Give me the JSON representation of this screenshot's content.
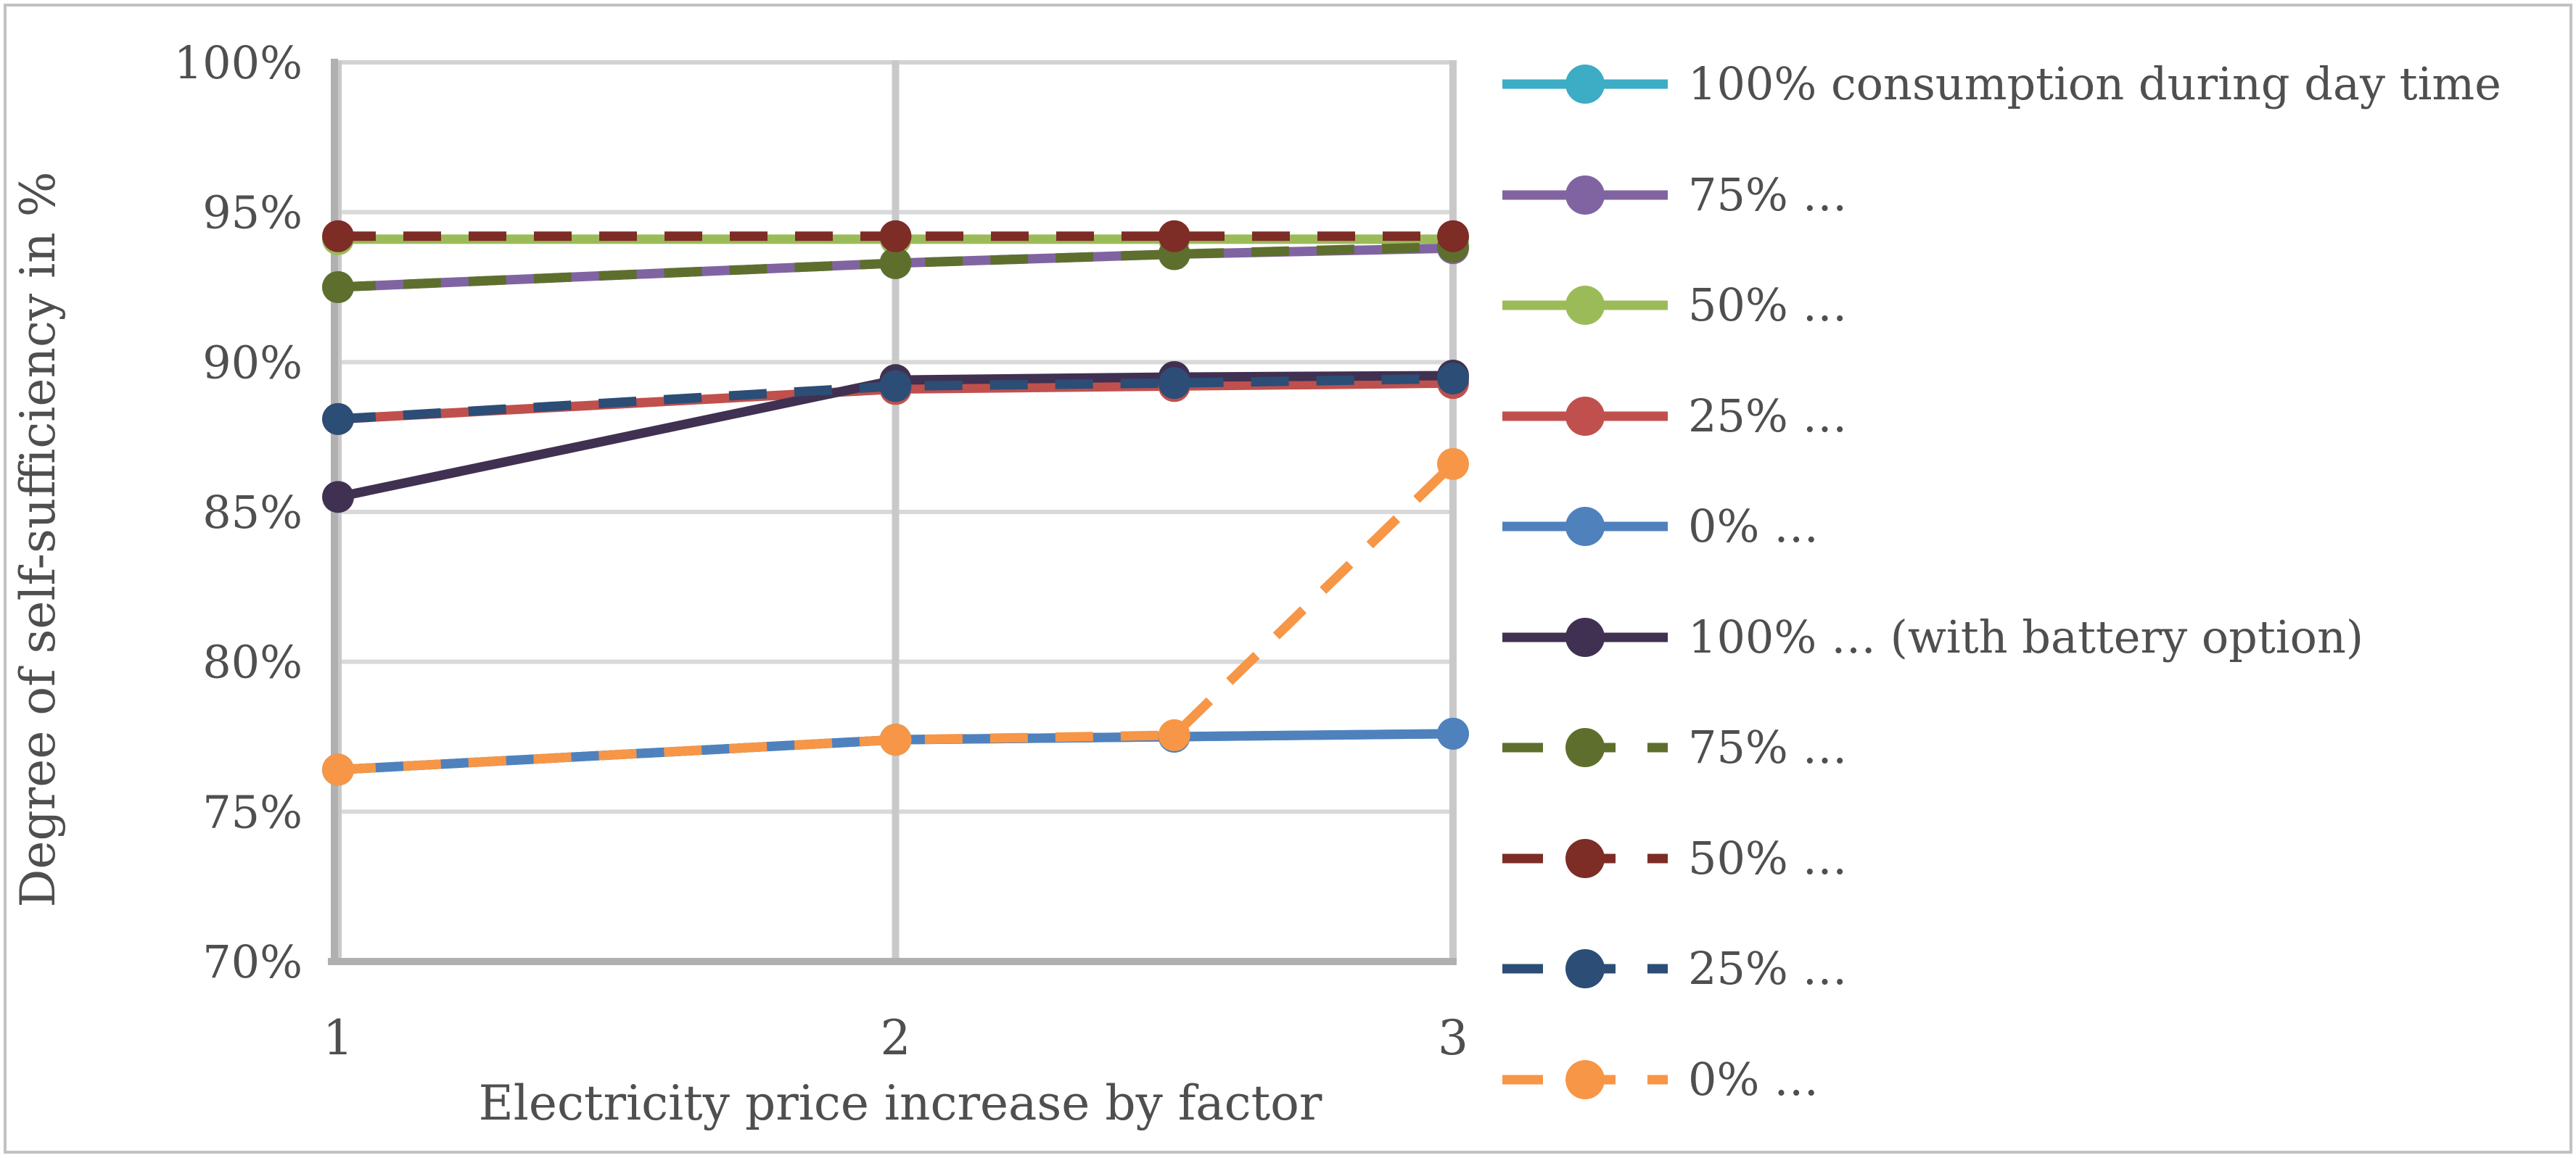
{
  "figure": {
    "background": "#ffffff",
    "border_color": "#c2c2c2"
  },
  "chart_data": {
    "type": "line",
    "title": "",
    "xlabel": "Electricity price increase by factor",
    "ylabel": "Degree of self-sufficiency in %",
    "x": [
      1,
      2,
      2.5,
      3
    ],
    "xticks": [
      1,
      2,
      3
    ],
    "xtick_labels": [
      "1",
      "2",
      "3"
    ],
    "yticks": [
      100,
      95,
      90,
      85,
      80,
      75,
      70
    ],
    "ytick_labels": [
      "100%",
      "95%",
      "90%",
      "85%",
      "80%",
      "75%",
      "70%"
    ],
    "ylim": [
      70,
      100
    ],
    "xlim": [
      1,
      3
    ],
    "grid": true,
    "legend_position": "right",
    "series": [
      {
        "name": "100% consumption during day time",
        "legend_label": "100% consumption during day time",
        "color": "#3dacc5",
        "style": "solid",
        "values": [
          76.4,
          77.4,
          77.5,
          77.6
        ]
      },
      {
        "name": "75% consumption during day time",
        "legend_label": "75% …",
        "color": "#8064a2",
        "style": "solid",
        "values": [
          92.5,
          93.3,
          93.6,
          93.8
        ]
      },
      {
        "name": "50% consumption during day time",
        "legend_label": "50% …",
        "color": "#9bbb59",
        "style": "solid",
        "values": [
          94.1,
          94.1,
          94.1,
          94.1
        ]
      },
      {
        "name": "25% consumption during day time",
        "legend_label": "25% …",
        "color": "#c0504d",
        "style": "solid",
        "values": [
          88.1,
          89.1,
          89.2,
          89.3
        ]
      },
      {
        "name": "0% consumption during day time",
        "legend_label": "0% …",
        "color": "#4f81bd",
        "style": "solid",
        "values": [
          76.4,
          77.4,
          77.5,
          77.6
        ]
      },
      {
        "name": "100% consumption during day time (with battery option)",
        "legend_label": "100% … (with battery option)",
        "color": "#403152",
        "style": "solid",
        "values": [
          85.5,
          89.4,
          89.5,
          89.55
        ]
      },
      {
        "name": "75% consumption during day time (with battery option)",
        "legend_label": "75% …",
        "color": "#5e6f2d",
        "style": "dashed",
        "values": [
          92.5,
          93.3,
          93.6,
          93.85
        ]
      },
      {
        "name": "50% consumption during day time (with battery option)",
        "legend_label": "50% …",
        "color": "#7d2c26",
        "style": "dashed",
        "values": [
          94.2,
          94.2,
          94.2,
          94.2
        ]
      },
      {
        "name": "25% consumption during day time (with battery option)",
        "legend_label": "25% …",
        "color": "#2c4d75",
        "style": "dashed",
        "values": [
          88.1,
          89.2,
          89.3,
          89.45
        ]
      },
      {
        "name": "0% consumption during day time (with battery option)",
        "legend_label": "0% …",
        "color": "#f79646",
        "style": "dashed",
        "values": [
          76.4,
          77.4,
          77.55,
          86.6
        ]
      }
    ]
  },
  "palette": {
    "gridline": "#d9d9d9",
    "vertical_gridline": "#c9c9c9",
    "axis": "#b0b0b0",
    "plot_top_border": "#d2d2d2",
    "tick_text": "#4f4f4f"
  }
}
